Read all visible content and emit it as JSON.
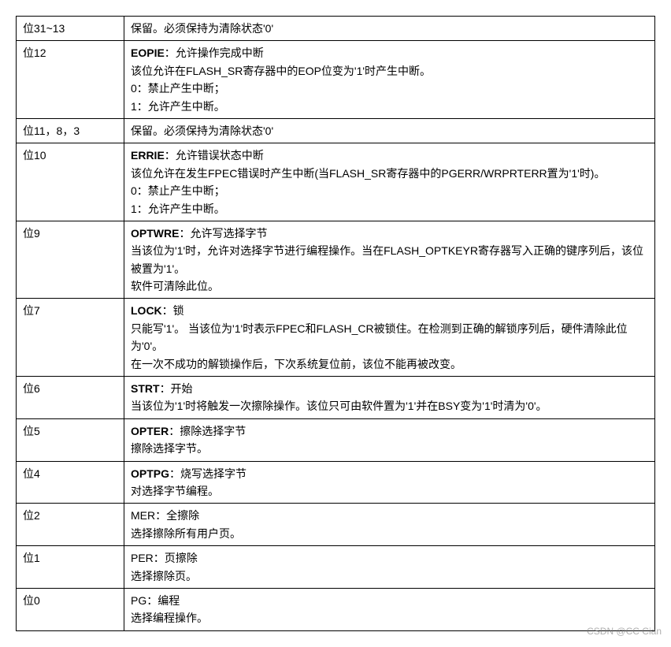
{
  "table": {
    "columns": [
      "bit",
      "description"
    ],
    "col_widths": [
      "120px",
      "auto"
    ],
    "border_color": "#000000",
    "font_size": 14,
    "rows": [
      {
        "bit": "位31~13",
        "desc_lines": [
          {
            "text": "保留。必须保持为清除状态'0'"
          }
        ]
      },
      {
        "bit": "位12",
        "desc_lines": [
          {
            "bold_prefix": "EOPIE",
            "rest": "：允许操作完成中断"
          },
          {
            "text": "该位允许在FLASH_SR寄存器中的EOP位变为'1'时产生中断。"
          },
          {
            "text": "0：禁止产生中断；"
          },
          {
            "text": "1：允许产生中断。"
          }
        ]
      },
      {
        "bit": "位11，8，3",
        "desc_lines": [
          {
            "text": "保留。必须保持为清除状态'0'"
          }
        ]
      },
      {
        "bit": "位10",
        "desc_lines": [
          {
            "bold_prefix": "ERRIE",
            "rest": "：允许错误状态中断"
          },
          {
            "text": "该位允许在发生FPEC错误时产生中断(当FLASH_SR寄存器中的PGERR/WRPRTERR置为'1'时)。"
          },
          {
            "text": "0：禁止产生中断；"
          },
          {
            "text": "1：允许产生中断。"
          }
        ]
      },
      {
        "bit": "位9",
        "desc_lines": [
          {
            "bold_prefix": "OPTWRE",
            "rest": "：允许写选择字节"
          },
          {
            "text": "当该位为'1'时，允许对选择字节进行编程操作。当在FLASH_OPTKEYR寄存器写入正确的键序列后，该位被置为'1'。"
          },
          {
            "text": "软件可清除此位。"
          }
        ]
      },
      {
        "bit": "位7",
        "desc_lines": [
          {
            "bold_prefix": "LOCK",
            "rest": "：锁"
          },
          {
            "text": "只能写'1'。 当该位为'1'时表示FPEC和FLASH_CR被锁住。在检测到正确的解锁序列后，硬件清除此位为'0'。"
          },
          {
            "text": "在一次不成功的解锁操作后，下次系统复位前，该位不能再被改变。"
          }
        ]
      },
      {
        "bit": "位6",
        "desc_lines": [
          {
            "bold_prefix": "STRT",
            "rest": "：开始"
          },
          {
            "text": "当该位为'1'时将触发一次擦除操作。该位只可由软件置为'1'并在BSY变为'1'时清为'0'。"
          }
        ]
      },
      {
        "bit": "位5",
        "desc_lines": [
          {
            "bold_prefix": "OPTER",
            "rest": "：擦除选择字节"
          },
          {
            "text": "擦除选择字节。"
          }
        ]
      },
      {
        "bit": "位4",
        "desc_lines": [
          {
            "bold_prefix": "OPTPG",
            "rest": "：烧写选择字节"
          },
          {
            "text": "对选择字节编程。"
          }
        ]
      },
      {
        "bit": "位2",
        "desc_lines": [
          {
            "text": "MER：全擦除"
          },
          {
            "text": "选择擦除所有用户页。"
          }
        ]
      },
      {
        "bit": "位1",
        "desc_lines": [
          {
            "text": "PER：页擦除"
          },
          {
            "text": "选择擦除页。"
          }
        ]
      },
      {
        "bit": "位0",
        "desc_lines": [
          {
            "text": "PG：编程"
          },
          {
            "text": "选择编程操作。"
          }
        ]
      }
    ]
  },
  "watermark": "CSDN @CC Cian"
}
